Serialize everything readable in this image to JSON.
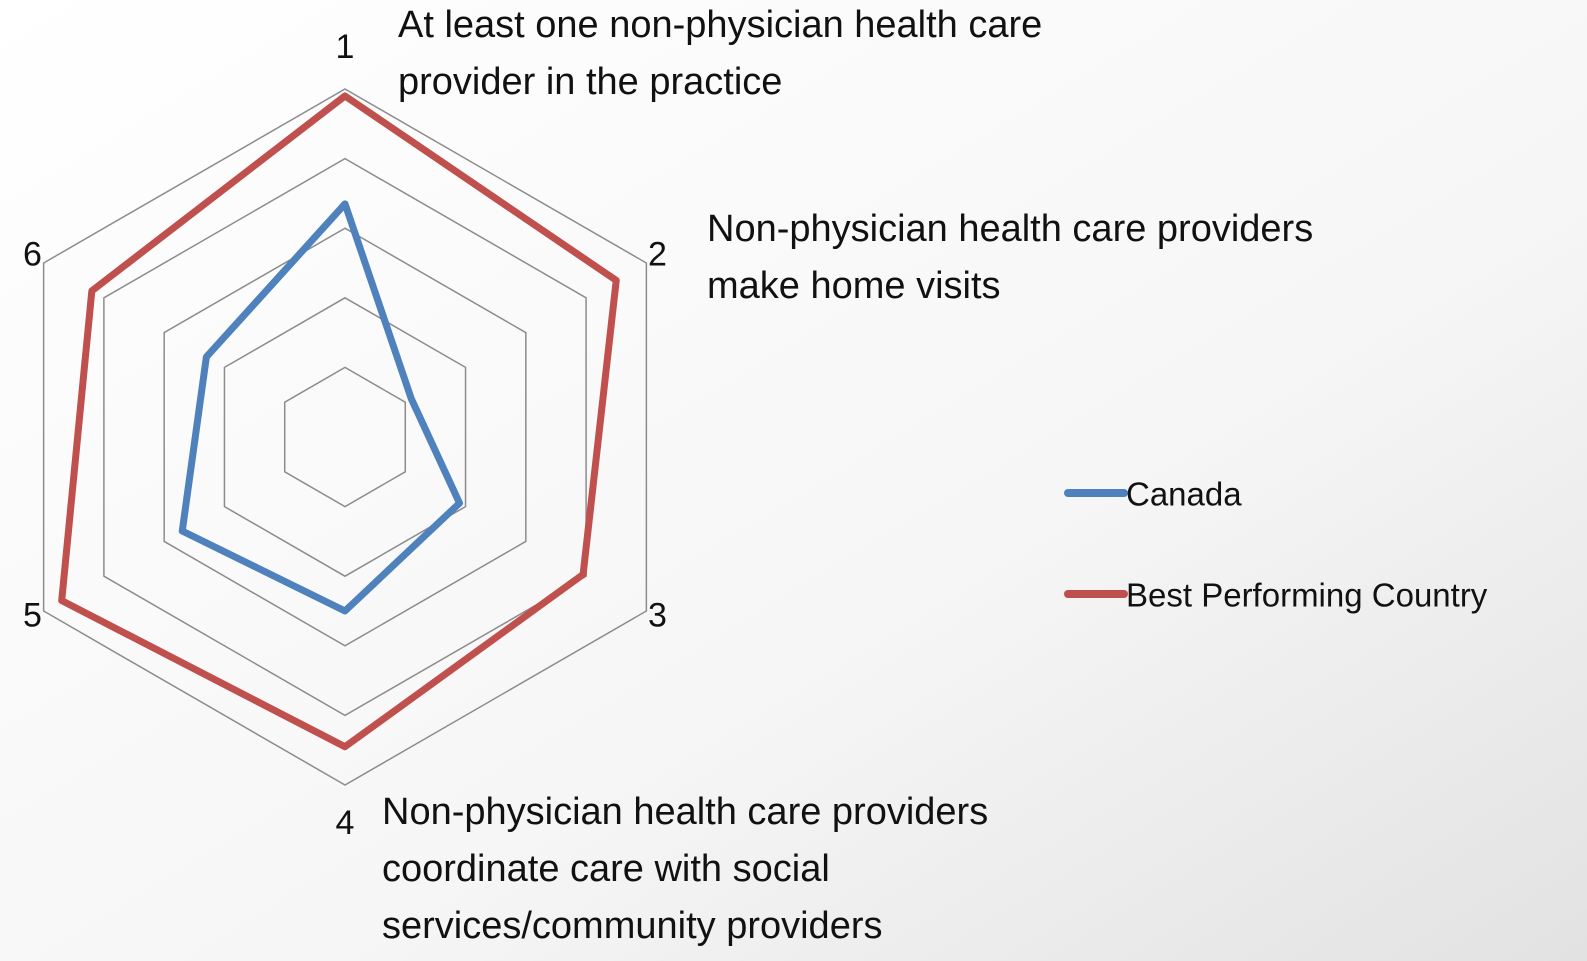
{
  "chart_data": {
    "type": "radar",
    "categories": [
      "1",
      "2",
      "3",
      "4",
      "5",
      "6"
    ],
    "series": [
      {
        "name": "Canada",
        "color": "#4f81bd",
        "values": [
          67,
          22,
          38,
          50,
          54,
          46
        ]
      },
      {
        "name": "Best Performing Country",
        "color": "#c0504d",
        "values": [
          98,
          90,
          79,
          89,
          94,
          84
        ]
      }
    ],
    "ylim": [
      0,
      100
    ],
    "yticks": [
      20,
      40,
      60,
      80,
      100
    ],
    "grid": true,
    "legend": "right",
    "annotations": [
      [
        "At least one non-physician health care",
        "provider in the practice"
      ],
      [
        "Non-physician health care providers",
        "make home visits"
      ],
      [
        "Non-physician health care providers",
        "coordinate care with social",
        "services/community providers"
      ]
    ]
  }
}
